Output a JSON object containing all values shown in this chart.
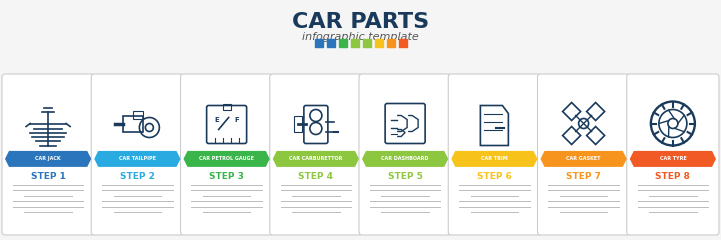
{
  "title": "CAR PARTS",
  "subtitle": "infographic template",
  "title_color": "#1a3a5c",
  "subtitle_color": "#555555",
  "bg_color": "#f5f5f5",
  "icon_color": "#1a3a5c",
  "steps": [
    {
      "label": "CAR JACK",
      "step": "STEP 1",
      "color": "#2a75bb",
      "border": "#cccccc"
    },
    {
      "label": "CAR TAILPIPE",
      "step": "STEP 2",
      "color": "#29abe2",
      "border": "#cccccc"
    },
    {
      "label": "CAR PETROL GAUGE",
      "step": "STEP 3",
      "color": "#39b54a",
      "border": "#cccccc"
    },
    {
      "label": "CAR CARBURETTOR",
      "step": "STEP 4",
      "color": "#8dc63f",
      "border": "#cccccc"
    },
    {
      "label": "CAR DASHBOARD",
      "step": "STEP 5",
      "color": "#8dc63f",
      "border": "#cccccc"
    },
    {
      "label": "CAR TRIM",
      "step": "STEP 6",
      "color": "#f7c31a",
      "border": "#cccccc"
    },
    {
      "label": "CAR GASKET",
      "step": "STEP 7",
      "color": "#f7941d",
      "border": "#cccccc"
    },
    {
      "label": "CAR TYRE",
      "step": "STEP 8",
      "color": "#f15a24",
      "border": "#cccccc"
    }
  ],
  "dot_colors": [
    "#2a75bb",
    "#2a75bb",
    "#39b54a",
    "#8dc63f",
    "#8dc63f",
    "#f7c31a",
    "#f7941d",
    "#f15a24"
  ]
}
